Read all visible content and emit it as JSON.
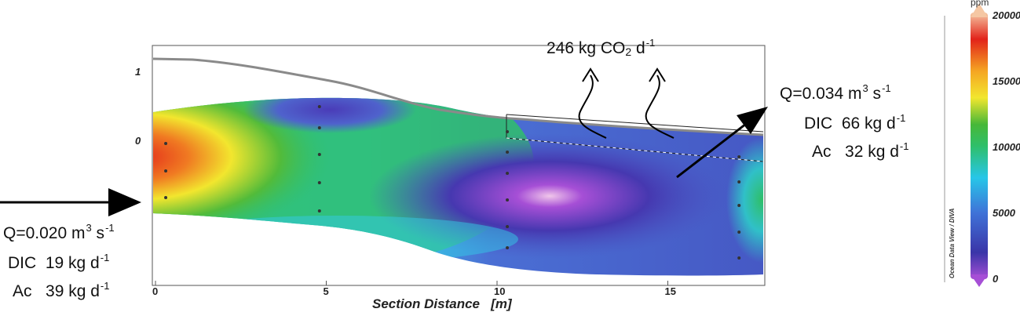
{
  "chart_data": {
    "type": "heatmap",
    "xlabel": "Section Distance",
    "xunit": "[m]",
    "x_ticks": [
      "0",
      "5",
      "10",
      "15"
    ],
    "y_ticks": [
      "1",
      "0"
    ],
    "xlim": [
      0,
      18
    ],
    "colorbar": {
      "unit": "ppm",
      "ticks": [
        "20000",
        "15000",
        "10000",
        "5000",
        "0"
      ],
      "range": [
        0,
        20000
      ],
      "credit": "Ocean Data View / DIVA"
    },
    "sample_stations_m": [
      0.3,
      4.8,
      10.3,
      17.2
    ],
    "annotations": {
      "inflow": {
        "q_label": "Q=0.020 m",
        "q_sup": "3",
        "q_unit": " s",
        "q_unit_sup": "-1",
        "dic_label": "DIC",
        "dic_value": "19 kg d",
        "dic_sup": "-1",
        "ac_label": "Ac",
        "ac_value": "39 kg d",
        "ac_sup": "-1"
      },
      "outflow": {
        "q_label": "Q=0.034 m",
        "q_sup": "3",
        "q_unit": " s",
        "q_unit_sup": "-1",
        "dic_label": "DIC",
        "dic_value": "66 kg d",
        "dic_sup": "-1",
        "ac_label": "Ac",
        "ac_value": "32 kg d",
        "ac_sup": "-1"
      },
      "flux": {
        "text": "246 kg CO",
        "sub": "2",
        "unit": " d",
        "unit_sup": "-1"
      }
    },
    "colors": {
      "stops": [
        "#a64fd6",
        "#3a35a8",
        "#3f73d8",
        "#27c6e8",
        "#2fbf6a",
        "#47b838",
        "#f2e62e",
        "#f5a623",
        "#e2231a",
        "#f5c7a3"
      ],
      "surface_line": "#888888"
    }
  }
}
